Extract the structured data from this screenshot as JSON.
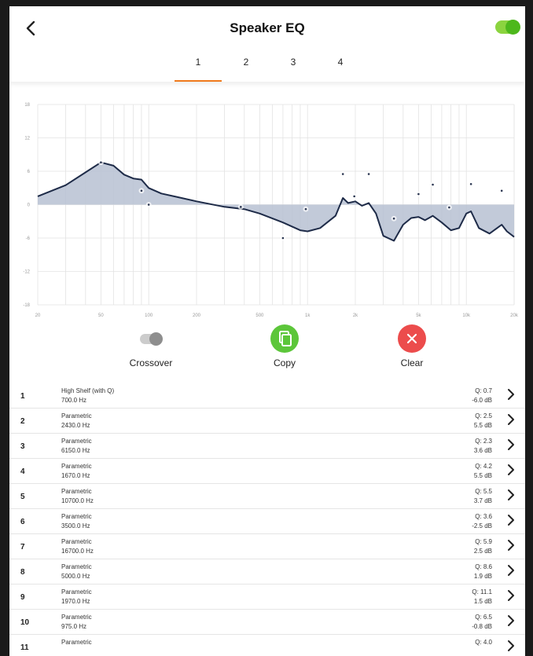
{
  "header": {
    "back_icon": "chevron-left-icon",
    "title": "Speaker EQ",
    "enabled": true,
    "toggle_color": "#4db81c"
  },
  "tabs": [
    {
      "label": "1",
      "active": true
    },
    {
      "label": "2",
      "active": false
    },
    {
      "label": "3",
      "active": false
    },
    {
      "label": "4",
      "active": false
    }
  ],
  "chart_data": {
    "type": "line",
    "x_scale": "log",
    "xlim": [
      20,
      20000
    ],
    "ylim": [
      -18,
      18
    ],
    "x_tick_labels": [
      "20",
      "50",
      "100",
      "200",
      "500",
      "1k",
      "2k",
      "5k",
      "10k",
      "20k"
    ],
    "y_tick_labels": [
      "18",
      "12",
      "6",
      "0",
      "-6",
      "-12",
      "-18"
    ],
    "grid": true,
    "series": [
      {
        "x": [
          20,
          30,
          40,
          50,
          60,
          70,
          80,
          90,
          100,
          120,
          150,
          200,
          300,
          400,
          500,
          700,
          900,
          1000,
          1200,
          1500,
          1670,
          1800,
          2000,
          2200,
          2430,
          2700,
          3000,
          3500,
          4000,
          4500,
          5000,
          5500,
          6150,
          7000,
          8000,
          9000,
          10000,
          10700,
          12000,
          14000,
          16700,
          18000,
          20000
        ],
        "y": [
          1.5,
          3.5,
          5.8,
          7.6,
          7.0,
          5.4,
          4.7,
          4.5,
          3.0,
          2.0,
          1.4,
          0.6,
          -0.4,
          -0.8,
          -1.6,
          -3.2,
          -4.6,
          -4.8,
          -4.2,
          -2.0,
          1.2,
          0.3,
          0.6,
          -0.2,
          0.3,
          -1.6,
          -5.6,
          -6.5,
          -3.6,
          -2.4,
          -2.2,
          -2.8,
          -2.0,
          -3.2,
          -4.6,
          -4.2,
          -1.6,
          -1.2,
          -4.2,
          -5.2,
          -3.6,
          -4.8,
          -5.8
        ]
      }
    ],
    "filter_points": [
      {
        "x": 50,
        "y": 7.6
      },
      {
        "x": 90,
        "y": 2.5
      },
      {
        "x": 100,
        "y": 0
      },
      {
        "x": 380,
        "y": -0.4
      },
      {
        "x": 700,
        "y": -6.0
      },
      {
        "x": 975,
        "y": -0.8
      },
      {
        "x": 1670,
        "y": 5.5
      },
      {
        "x": 1970,
        "y": 1.5
      },
      {
        "x": 2430,
        "y": 5.5
      },
      {
        "x": 3500,
        "y": -2.5
      },
      {
        "x": 5000,
        "y": 1.9
      },
      {
        "x": 6150,
        "y": 3.6
      },
      {
        "x": 7800,
        "y": -0.5
      },
      {
        "x": 10700,
        "y": 3.7
      },
      {
        "x": 16700,
        "y": 2.5
      }
    ],
    "line_color": "#1e2b48",
    "fill_color": "#b7c1d2"
  },
  "actions": {
    "crossover": {
      "label": "Crossover",
      "enabled": false
    },
    "copy": {
      "label": "Copy",
      "icon": "copy-icon",
      "color": "#5cc63a"
    },
    "clear": {
      "label": "Clear",
      "icon": "close-icon",
      "color": "#ec4c4c"
    }
  },
  "bands": [
    {
      "num": "1",
      "type": "High Shelf (with Q)",
      "freq": "700.0 Hz",
      "q": "Q: 0.7",
      "gain": "-6.0 dB"
    },
    {
      "num": "2",
      "type": "Parametric",
      "freq": "2430.0 Hz",
      "q": "Q: 2.5",
      "gain": "5.5 dB"
    },
    {
      "num": "3",
      "type": "Parametric",
      "freq": "6150.0 Hz",
      "q": "Q: 2.3",
      "gain": "3.6 dB"
    },
    {
      "num": "4",
      "type": "Parametric",
      "freq": "1670.0 Hz",
      "q": "Q: 4.2",
      "gain": "5.5 dB"
    },
    {
      "num": "5",
      "type": "Parametric",
      "freq": "10700.0 Hz",
      "q": "Q: 5.5",
      "gain": "3.7 dB"
    },
    {
      "num": "6",
      "type": "Parametric",
      "freq": "3500.0 Hz",
      "q": "Q: 3.6",
      "gain": "-2.5 dB"
    },
    {
      "num": "7",
      "type": "Parametric",
      "freq": "16700.0 Hz",
      "q": "Q: 5.9",
      "gain": "2.5 dB"
    },
    {
      "num": "8",
      "type": "Parametric",
      "freq": "5000.0 Hz",
      "q": "Q: 8.6",
      "gain": "1.9 dB"
    },
    {
      "num": "9",
      "type": "Parametric",
      "freq": "1970.0 Hz",
      "q": "Q: 11.1",
      "gain": "1.5 dB"
    },
    {
      "num": "10",
      "type": "Parametric",
      "freq": "975.0 Hz",
      "q": "Q: 6.5",
      "gain": "-0.8 dB"
    },
    {
      "num": "11",
      "type": "Parametric",
      "freq": "",
      "q": "Q: 4.0",
      "gain": ""
    }
  ]
}
